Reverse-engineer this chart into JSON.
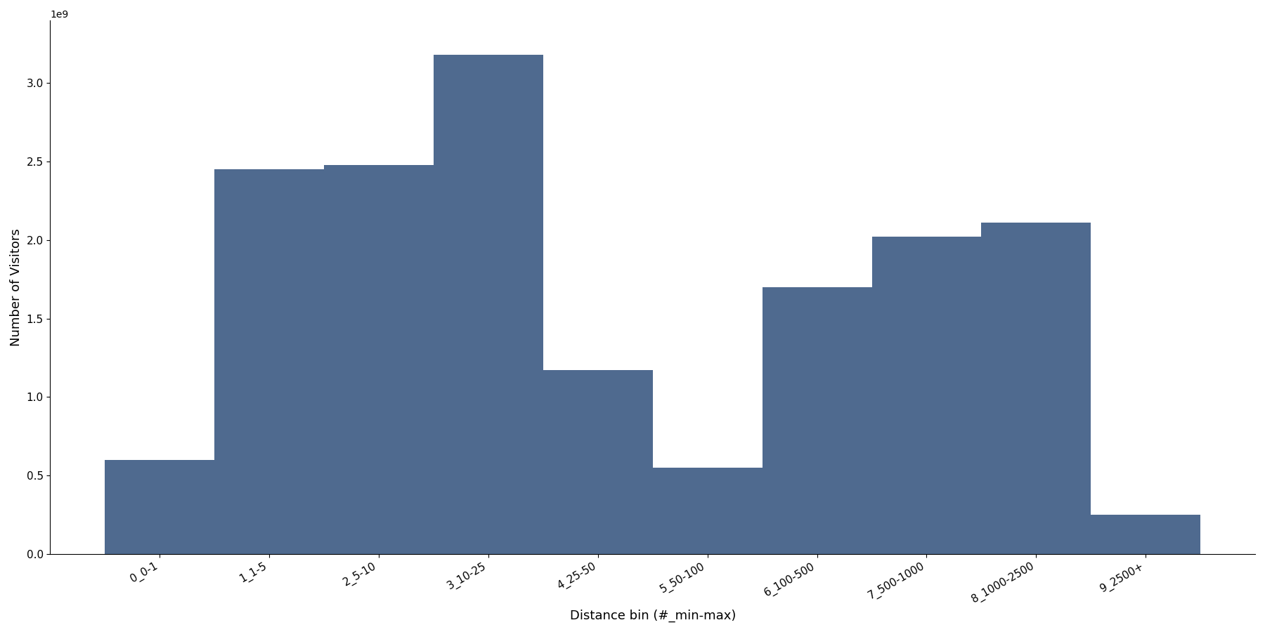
{
  "categories": [
    "0_0-1",
    "1_1-5",
    "2_5-10",
    "3_10-25",
    "4_25-50",
    "5_50-100",
    "6_100-500",
    "7_500-1000",
    "8_1000-2500",
    "9_2500+"
  ],
  "values": [
    600000000.0,
    2450000000.0,
    2480000000.0,
    3180000000.0,
    1170000000.0,
    550000000.0,
    1700000000.0,
    2020000000.0,
    2110000000.0,
    250000000.0
  ],
  "bar_color": "#4f6a8f",
  "xlabel": "Distance bin (#_min-max)",
  "ylabel": "Number of Visitors",
  "ylim": [
    0,
    3400000000.0
  ],
  "background_color": "#ffffff",
  "figsize": [
    18.0,
    9.0
  ],
  "dpi": 100
}
